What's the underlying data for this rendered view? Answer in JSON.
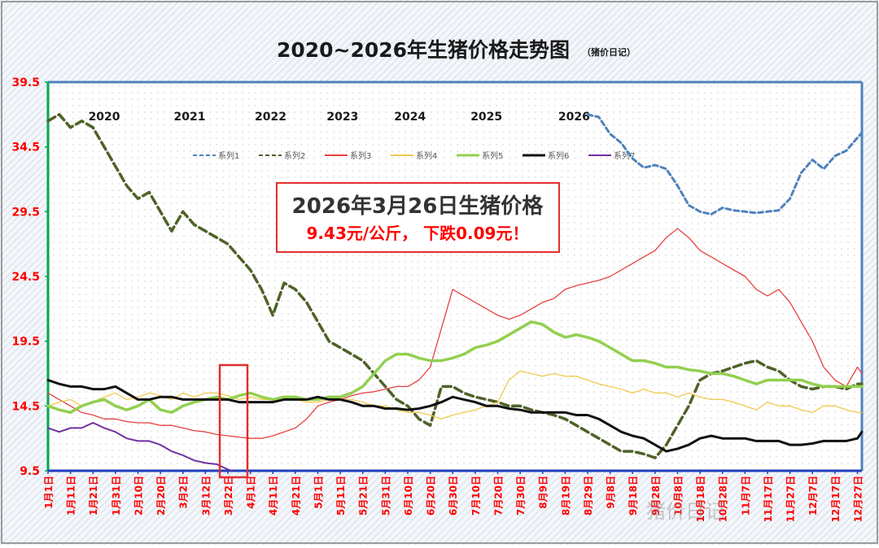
{
  "chart_data": {
    "type": "line",
    "title": "2020~2026年生猪价格走势图",
    "title_note": "（猪价日记）",
    "callout": {
      "line1": "2026年3月26日生猪价格",
      "line2": "9.43元/公斤， 下跌0.09元！"
    },
    "watermark": "猪价日记",
    "year_labels": [
      {
        "label": "2020",
        "x": 26
      },
      {
        "label": "2021",
        "x": 64
      },
      {
        "label": "2022",
        "x": 100
      },
      {
        "label": "2023",
        "x": 132
      },
      {
        "label": "2024",
        "x": 162
      },
      {
        "label": "2025",
        "x": 196
      },
      {
        "label": "2026",
        "x": 235
      }
    ],
    "x": [
      1,
      11,
      21,
      31,
      41,
      51,
      61,
      71,
      81,
      91,
      101,
      111,
      121,
      131,
      141,
      151,
      161,
      171,
      181,
      191,
      201,
      211,
      221,
      231,
      241,
      251,
      261,
      271,
      281,
      291,
      301,
      311,
      321,
      331,
      341,
      351,
      361
    ],
    "x_tick_labels": [
      "1月1日",
      "1月11日",
      "1月21日",
      "1月31日",
      "2月10日",
      "2月20日",
      "3月2日",
      "3月12日",
      "3月22日",
      "4月1日",
      "4月11日",
      "4月21日",
      "5月1日",
      "5月11日",
      "5月21日",
      "5月31日",
      "6月10日",
      "6月20日",
      "6月30日",
      "7月10日",
      "7月20日",
      "7月30日",
      "8月9日",
      "8月19日",
      "8月29日",
      "9月8日",
      "9月18日",
      "9月28日",
      "10月8日",
      "10月18日",
      "10月28日",
      "11月7日",
      "11月17日",
      "11月27日",
      "12月7日",
      "12月17日",
      "12月27日"
    ],
    "y_ticks": [
      "9.5",
      "14.5",
      "19.5",
      "24.5",
      "29.5",
      "34.5",
      "39.5"
    ],
    "ylim": [
      9.5,
      39.5
    ],
    "xlim": [
      1,
      363
    ],
    "legend_placement": "top",
    "grid": false,
    "series": [
      {
        "name": "系列1",
        "color": "#4F81BD",
        "dash": "6,4",
        "x": [
          241,
          246,
          251,
          256,
          261,
          266,
          271,
          276,
          281,
          286,
          291,
          296,
          301,
          306,
          311,
          316,
          321,
          326,
          331,
          336,
          341,
          346,
          351,
          356,
          361,
          363
        ],
        "values": [
          37.0,
          36.8,
          35.5,
          34.8,
          33.6,
          32.9,
          33.1,
          32.8,
          31.5,
          30.0,
          29.5,
          29.3,
          29.8,
          29.6,
          29.5,
          29.4,
          29.5,
          29.6,
          30.5,
          32.5,
          33.5,
          32.8,
          33.8,
          34.2,
          35.2,
          35.6
        ]
      },
      {
        "name": "系列2",
        "color": "#4F6228",
        "dash": "10,5",
        "x": [
          1,
          6,
          11,
          16,
          21,
          26,
          31,
          36,
          41,
          46,
          51,
          56,
          61,
          66,
          71,
          76,
          81,
          86,
          91,
          96,
          101,
          106,
          111,
          116,
          121,
          126,
          131,
          136,
          141,
          146,
          151,
          156,
          161,
          166,
          171,
          176,
          181,
          186,
          191,
          196,
          201,
          206,
          211,
          216,
          221,
          226,
          231,
          236,
          241,
          246,
          251,
          256,
          261,
          266,
          271,
          276,
          281,
          286,
          291,
          296,
          301,
          306,
          311,
          316,
          321,
          326,
          331,
          336,
          341,
          346,
          351,
          356,
          361,
          363
        ],
        "values": [
          36.5,
          37.0,
          36.0,
          36.5,
          36.0,
          34.5,
          33.0,
          31.5,
          30.5,
          31.0,
          29.5,
          28.0,
          29.5,
          28.5,
          28.0,
          27.5,
          27.0,
          26.0,
          25.0,
          23.5,
          21.5,
          24.0,
          23.5,
          22.5,
          21.0,
          19.5,
          19.0,
          18.5,
          18.0,
          17.0,
          16.0,
          15.0,
          14.5,
          13.5,
          13.0,
          16.0,
          16.0,
          15.5,
          15.2,
          15.0,
          14.8,
          14.5,
          14.5,
          14.2,
          14.0,
          13.8,
          13.5,
          13.0,
          12.5,
          12.0,
          11.5,
          11.0,
          11.0,
          10.8,
          10.5,
          11.5,
          13.0,
          14.5,
          16.5,
          17.0,
          17.2,
          17.5,
          17.8,
          18.0,
          17.5,
          17.2,
          16.5,
          16.0,
          15.8,
          16.0,
          16.0,
          15.8,
          16.2,
          16.2
        ]
      },
      {
        "name": "系列3",
        "color": "#E84040",
        "dash": "",
        "x": [
          1,
          6,
          11,
          16,
          21,
          26,
          31,
          36,
          41,
          46,
          51,
          56,
          61,
          66,
          71,
          76,
          81,
          86,
          91,
          96,
          101,
          106,
          111,
          116,
          121,
          126,
          131,
          136,
          141,
          146,
          151,
          156,
          161,
          166,
          171,
          176,
          181,
          186,
          191,
          196,
          201,
          206,
          211,
          216,
          221,
          226,
          231,
          236,
          241,
          246,
          251,
          256,
          261,
          266,
          271,
          276,
          281,
          286,
          291,
          296,
          301,
          306,
          311,
          316,
          321,
          326,
          331,
          336,
          341,
          346,
          351,
          356,
          361,
          363
        ],
        "values": [
          15.5,
          15.0,
          14.5,
          14.0,
          13.8,
          13.5,
          13.5,
          13.3,
          13.2,
          13.2,
          13.0,
          13.0,
          12.8,
          12.6,
          12.5,
          12.3,
          12.2,
          12.1,
          12.0,
          12.0,
          12.2,
          12.5,
          12.8,
          13.5,
          14.5,
          14.8,
          15.0,
          15.3,
          15.5,
          15.6,
          15.8,
          16.0,
          16.0,
          16.5,
          17.5,
          20.5,
          23.5,
          23.0,
          22.5,
          22.0,
          21.5,
          21.2,
          21.5,
          22.0,
          22.5,
          22.8,
          23.5,
          23.8,
          24.0,
          24.2,
          24.5,
          25.0,
          25.5,
          26.0,
          26.5,
          27.5,
          28.2,
          27.5,
          26.5,
          26.0,
          25.5,
          25.0,
          24.5,
          23.5,
          23.0,
          23.5,
          22.5,
          21.0,
          19.5,
          17.5,
          16.5,
          16.0,
          17.5,
          17.0
        ]
      },
      {
        "name": "系列4",
        "color": "#F2C94C",
        "dash": "",
        "x": [
          1,
          6,
          11,
          16,
          21,
          26,
          31,
          36,
          41,
          46,
          51,
          56,
          61,
          66,
          71,
          76,
          81,
          86,
          91,
          96,
          101,
          106,
          111,
          116,
          121,
          126,
          131,
          136,
          141,
          146,
          151,
          156,
          161,
          166,
          171,
          176,
          181,
          186,
          191,
          196,
          201,
          206,
          211,
          216,
          221,
          226,
          231,
          236,
          241,
          246,
          251,
          256,
          261,
          266,
          271,
          276,
          281,
          286,
          291,
          296,
          301,
          306,
          311,
          316,
          321,
          326,
          331,
          336,
          341,
          346,
          351,
          356,
          361,
          363
        ],
        "values": [
          14.5,
          14.8,
          15.0,
          14.5,
          14.8,
          15.2,
          15.5,
          15.0,
          15.2,
          15.5,
          15.3,
          15.0,
          15.5,
          15.2,
          15.5,
          15.5,
          15.3,
          15.0,
          15.2,
          15.0,
          15.0,
          15.2,
          15.0,
          14.8,
          14.8,
          15.0,
          15.0,
          15.0,
          14.8,
          14.5,
          14.5,
          14.2,
          14.0,
          14.0,
          13.8,
          13.5,
          13.8,
          14.0,
          14.2,
          14.5,
          14.8,
          16.5,
          17.2,
          17.0,
          16.8,
          17.0,
          16.8,
          16.8,
          16.5,
          16.2,
          16.0,
          15.8,
          15.5,
          15.8,
          15.5,
          15.5,
          15.2,
          15.5,
          15.2,
          15.0,
          15.0,
          14.8,
          14.5,
          14.2,
          14.8,
          14.5,
          14.5,
          14.2,
          14.0,
          14.5,
          14.5,
          14.2,
          14.0,
          14.0
        ]
      },
      {
        "name": "系列5",
        "color": "#92D050",
        "dash": "",
        "x": [
          1,
          6,
          11,
          16,
          21,
          26,
          31,
          36,
          41,
          46,
          51,
          56,
          61,
          66,
          71,
          76,
          81,
          86,
          91,
          96,
          101,
          106,
          111,
          116,
          121,
          126,
          131,
          136,
          141,
          146,
          151,
          156,
          161,
          166,
          171,
          176,
          181,
          186,
          191,
          196,
          201,
          206,
          211,
          216,
          221,
          226,
          231,
          236,
          241,
          246,
          251,
          256,
          261,
          266,
          271,
          276,
          281,
          286,
          291,
          296,
          301,
          306,
          311,
          316,
          321,
          326,
          331,
          336,
          341,
          346,
          351,
          356,
          361,
          363
        ],
        "values": [
          14.5,
          14.2,
          14.0,
          14.5,
          14.8,
          15.0,
          14.5,
          14.2,
          14.5,
          15.0,
          14.2,
          14.0,
          14.5,
          14.8,
          15.0,
          15.2,
          15.0,
          15.3,
          15.5,
          15.2,
          15.0,
          15.2,
          15.2,
          15.0,
          15.0,
          15.2,
          15.2,
          15.5,
          16.0,
          17.0,
          18.0,
          18.5,
          18.5,
          18.2,
          18.0,
          18.0,
          18.2,
          18.5,
          19.0,
          19.2,
          19.5,
          20.0,
          20.5,
          21.0,
          20.8,
          20.2,
          19.8,
          20.0,
          19.8,
          19.5,
          19.0,
          18.5,
          18.0,
          18.0,
          17.8,
          17.5,
          17.5,
          17.3,
          17.2,
          17.0,
          17.0,
          16.8,
          16.5,
          16.2,
          16.5,
          16.5,
          16.5,
          16.5,
          16.2,
          16.0,
          16.0,
          16.0,
          16.0,
          16.0
        ]
      },
      {
        "name": "系列6",
        "color": "#111111",
        "dash": "",
        "x": [
          1,
          6,
          11,
          16,
          21,
          26,
          31,
          36,
          41,
          46,
          51,
          56,
          61,
          66,
          71,
          76,
          81,
          86,
          91,
          96,
          101,
          106,
          111,
          116,
          121,
          126,
          131,
          136,
          141,
          146,
          151,
          156,
          161,
          166,
          171,
          176,
          181,
          186,
          191,
          196,
          201,
          206,
          211,
          216,
          221,
          226,
          231,
          236,
          241,
          246,
          251,
          256,
          261,
          266,
          271,
          276,
          281,
          286,
          291,
          296,
          301,
          306,
          311,
          316,
          321,
          326,
          331,
          336,
          341,
          346,
          351,
          356,
          361,
          363
        ],
        "values": [
          16.5,
          16.2,
          16.0,
          16.0,
          15.8,
          15.8,
          16.0,
          15.5,
          15.0,
          15.0,
          15.2,
          15.2,
          15.0,
          15.0,
          15.0,
          15.0,
          15.0,
          14.8,
          14.8,
          14.8,
          14.8,
          15.0,
          15.0,
          15.0,
          15.2,
          15.0,
          15.0,
          14.8,
          14.5,
          14.5,
          14.3,
          14.3,
          14.2,
          14.3,
          14.5,
          14.8,
          15.2,
          15.0,
          14.8,
          14.5,
          14.5,
          14.3,
          14.2,
          14.0,
          14.0,
          14.0,
          14.0,
          13.8,
          13.8,
          13.5,
          13.0,
          12.5,
          12.2,
          12.0,
          11.5,
          11.0,
          11.2,
          11.5,
          12.0,
          12.2,
          12.0,
          12.0,
          12.0,
          11.8,
          11.8,
          11.8,
          11.5,
          11.5,
          11.6,
          11.8,
          11.8,
          11.8,
          12.0,
          12.5
        ]
      },
      {
        "name": "系列7",
        "color": "#7030A0",
        "dash": "",
        "x": [
          1,
          6,
          11,
          16,
          21,
          26,
          31,
          36,
          41,
          46,
          51,
          56,
          61,
          66,
          71,
          76,
          81,
          83
        ],
        "values": [
          12.8,
          12.5,
          12.8,
          12.8,
          13.2,
          12.8,
          12.5,
          12.0,
          11.8,
          11.8,
          11.5,
          11.0,
          10.7,
          10.3,
          10.1,
          10.0,
          9.6,
          9.5
        ]
      }
    ]
  }
}
